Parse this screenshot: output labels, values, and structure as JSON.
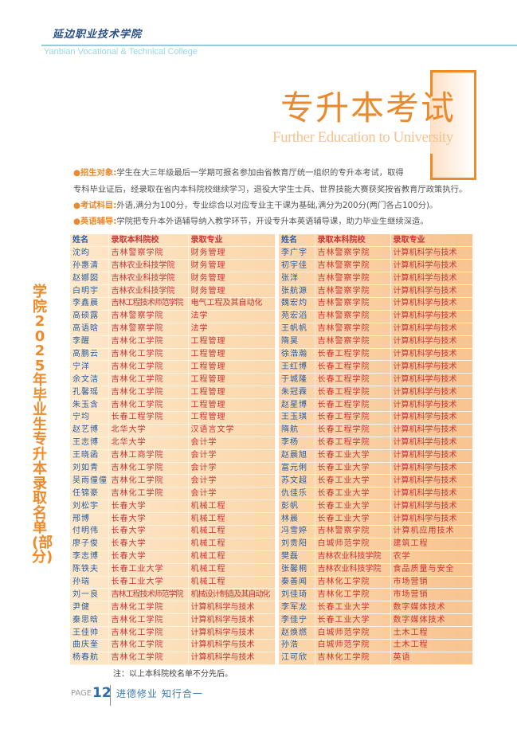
{
  "header": {
    "logo_text": "延边职业技术学院",
    "college_en": "Yanbian Vocational & Technical College"
  },
  "hero": {
    "title": "专升本考试",
    "subtitle": "Further Education to University"
  },
  "info": [
    {
      "label": "招生对象",
      "text": "学生在大三年级最后一学期可报名参加由省教育厅统一组织的专升本考试，取得",
      "text2": "专科毕业证后，经录取在省内本科院校继续学习，退役大学生士兵、世界技能大赛获奖按省教育厅政策执行。"
    },
    {
      "label": "考试科目",
      "text": "外语,满分为100分，专业综合以对应专业主干课为基础,满分为200分(两门各占100分)。"
    },
    {
      "label": "英语辅导",
      "text": "学院把专升本外语辅导纳入教学环节，开设专升本英语辅导课，助力毕业生继续深造。"
    }
  ],
  "side_title": "学院2025年毕业生专升本录取名单(部分)",
  "table": {
    "headers": [
      "姓名",
      "录取本科院校",
      "录取专业"
    ],
    "left": [
      [
        "沈昀",
        "吉林警察学院",
        "财务管理"
      ],
      [
        "孙惠清",
        "吉林农业科技学院",
        "财务管理"
      ],
      [
        "赵娜囡",
        "吉林农业科技学院",
        "财务管理"
      ],
      [
        "白明宇",
        "吉林农业科技学院",
        "财务管理"
      ],
      [
        "李鑫晨",
        "吉林工程技术师范学院",
        "电气工程及其自动化"
      ],
      [
        "高硕露",
        "吉林警察学院",
        "法学"
      ],
      [
        "高语晗",
        "吉林警察学院",
        "法学"
      ],
      [
        "李醒",
        "吉林化工学院",
        "工程管理"
      ],
      [
        "高鹏云",
        "吉林化工学院",
        "工程管理"
      ],
      [
        "宁洋",
        "吉林化工学院",
        "工程管理"
      ],
      [
        "余文洁",
        "吉林化工学院",
        "工程管理"
      ],
      [
        "孔馨瑶",
        "吉林化工学院",
        "工程管理"
      ],
      [
        "朱玉含",
        "吉林化工学院",
        "工程管理"
      ],
      [
        "宁均",
        "长春工程学院",
        "工程管理"
      ],
      [
        "赵艺博",
        "北华大学",
        "汉语言文学"
      ],
      [
        "王志博",
        "北华大学",
        "会计学"
      ],
      [
        "王晓函",
        "吉林工商学院",
        "会计学"
      ],
      [
        "刘如青",
        "吉林化工学院",
        "会计学"
      ],
      [
        "吴雨僮僮",
        "吉林化工学院",
        "会计学"
      ],
      [
        "任锦豪",
        "吉林化工学院",
        "会计学"
      ],
      [
        "刘松宇",
        "长春大学",
        "机械工程"
      ],
      [
        "邢博",
        "长春大学",
        "机械工程"
      ],
      [
        "付明伟",
        "长春大学",
        "机械工程"
      ],
      [
        "廖子俊",
        "长春大学",
        "机械工程"
      ],
      [
        "李志博",
        "长春大学",
        "机械工程"
      ],
      [
        "陈铁夫",
        "长春工业大学",
        "机械工程"
      ],
      [
        "孙瑞",
        "长春工业大学",
        "机械工程"
      ],
      [
        "刘一良",
        "吉林工程技术师范学院",
        "机械设计制造及其自动化"
      ],
      [
        "尹健",
        "吉林化工学院",
        "计算机科学与技术"
      ],
      [
        "秦思晗",
        "吉林化工学院",
        "计算机科学与技术"
      ],
      [
        "王佳帅",
        "吉林化工学院",
        "计算机科学与技术"
      ],
      [
        "曲庆奎",
        "吉林化工学院",
        "计算机科学与技术"
      ],
      [
        "杨春航",
        "吉林化工学院",
        "计算机科学与技术"
      ]
    ],
    "right": [
      [
        "李广宇",
        "吉林警察学院",
        "计算机科学与技术"
      ],
      [
        "初宇佳",
        "吉林警察学院",
        "计算机科学与技术"
      ],
      [
        "张洋",
        "吉林警察学院",
        "计算机科学与技术"
      ],
      [
        "张航源",
        "吉林警察学院",
        "计算机科学与技术"
      ],
      [
        "魏宏灼",
        "吉林警察学院",
        "计算机科学与技术"
      ],
      [
        "苑宏滔",
        "吉林警察学院",
        "计算机科学与技术"
      ],
      [
        "王帆帆",
        "吉林警察学院",
        "计算机科学与技术"
      ],
      [
        "隋昊",
        "吉林警察学院",
        "计算机科学与技术"
      ],
      [
        "徐浩瀚",
        "长春工程学院",
        "计算机科学与技术"
      ],
      [
        "王红博",
        "长春工程学院",
        "计算机科学与技术"
      ],
      [
        "于城隆",
        "长春工程学院",
        "计算机科学与技术"
      ],
      [
        "朱冠霖",
        "长春工程学院",
        "计算机科学与技术"
      ],
      [
        "赵星博",
        "长春工程学院",
        "计算机科学与技术"
      ],
      [
        "王玉琪",
        "长春工程学院",
        "计算机科学与技术"
      ],
      [
        "隋航",
        "长春工程学院",
        "计算机科学与技术"
      ],
      [
        "李杨",
        "长春工程学院",
        "计算机科学与技术"
      ],
      [
        "赵晨旭",
        "长春工业大学",
        "计算机科学与技术"
      ],
      [
        "富元俐",
        "长春工业大学",
        "计算机科学与技术"
      ],
      [
        "苏文超",
        "长春工业大学",
        "计算机科学与技术"
      ],
      [
        "仇佳乐",
        "长春工业大学",
        "计算机科学与技术"
      ],
      [
        "彭帆",
        "长春工业大学",
        "计算机科学与技术"
      ],
      [
        "林晨",
        "长春工业大学",
        "计算机科学与技术"
      ],
      [
        "冯雪婷",
        "吉林警察学院",
        "计算机应用技术"
      ],
      [
        "刘贵阳",
        "白城师范学院",
        "建筑工程"
      ],
      [
        "樊磊",
        "吉林农业科技学院",
        "农学"
      ],
      [
        "张馨桐",
        "吉林农业科技学院",
        "食品质量与安全"
      ],
      [
        "秦善闻",
        "吉林化工学院",
        "市场营销"
      ],
      [
        "刘佳琦",
        "吉林化工学院",
        "市场营销"
      ],
      [
        "李军龙",
        "长春工业大学",
        "数字媒体技术"
      ],
      [
        "李佳宁",
        "长春工业大学",
        "数字媒体技术"
      ],
      [
        "赵焕燃",
        "白城师范学院",
        "土木工程"
      ],
      [
        "孙浩",
        "白城师范学院",
        "土木工程"
      ],
      [
        "江可欣",
        "吉林化工学院",
        "英语"
      ]
    ]
  },
  "note": "注：以上本科院校名单不分先后。",
  "footer": {
    "page_label": "PAGE",
    "page_number": "12",
    "motto": "进德修业  知行合一"
  },
  "colors": {
    "accent": "#ea8a2e",
    "name_blue": "#2a5da3",
    "text_red": "#c9343a",
    "teal": "#8fd0d8"
  }
}
